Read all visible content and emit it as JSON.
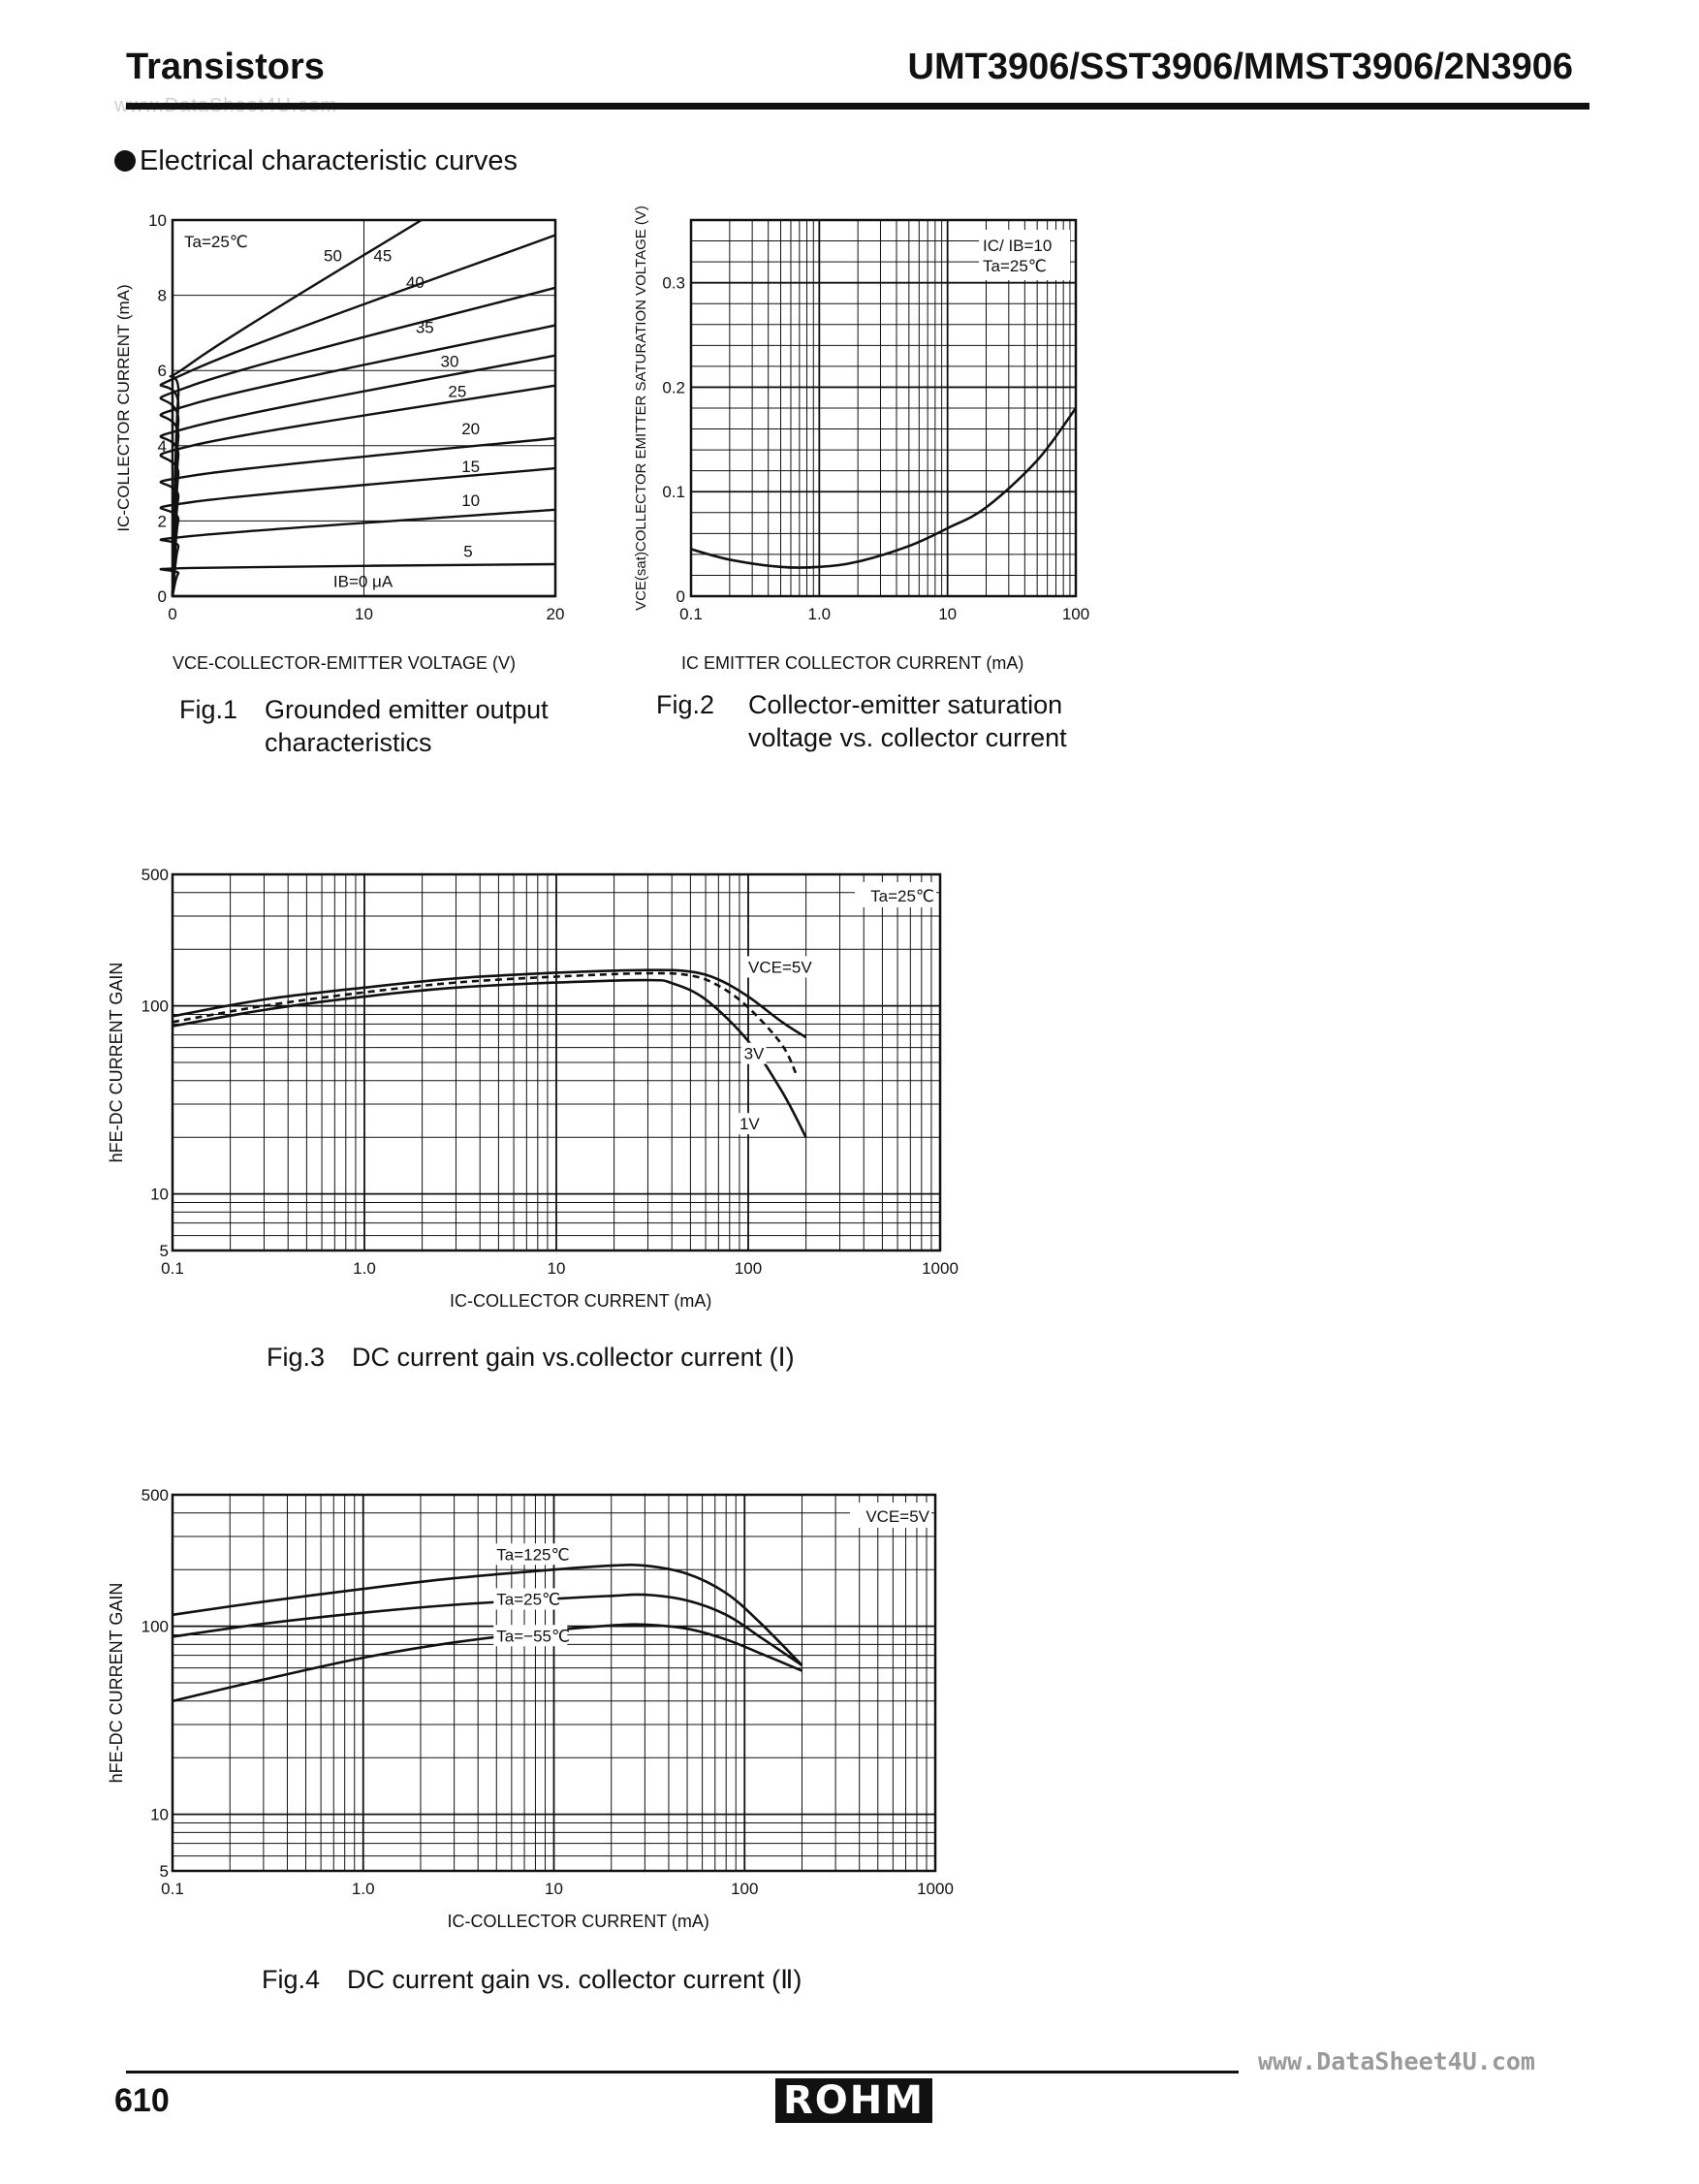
{
  "header": {
    "left_title": "Transistors",
    "right_title": "UMT3906/SST3906/MMST3906/2N3906",
    "watermark": "www.DataSheet4U.com"
  },
  "section_title": "Electrical characteristic curves",
  "footer": {
    "page_number": "610",
    "url": "www.DataSheet4U.com",
    "logo": "ROHM"
  },
  "chart_data": [
    {
      "id": "fig1",
      "type": "line",
      "caption_number": "Fig.1",
      "caption_line1": "Grounded emitter output",
      "caption_line2": "characteristics",
      "xlabel": "VCE-COLLECTOR-EMITTER VOLTAGE (V)",
      "ylabel": "IC-COLLECTOR CURRENT (mA)",
      "condition": "Ta=25℃",
      "xlim": [
        0,
        20
      ],
      "ylim": [
        0,
        10
      ],
      "x_ticks": [
        "0",
        "10",
        "20"
      ],
      "y_ticks": [
        "0",
        "2",
        "4",
        "6",
        "8",
        "10"
      ],
      "series": [
        {
          "name": "0",
          "label": "IB=0 μA",
          "points": [
            [
              0,
              0
            ],
            [
              20,
              0
            ]
          ]
        },
        {
          "name": "5",
          "label": "5",
          "points": [
            [
              0,
              0
            ],
            [
              0.3,
              0.6
            ],
            [
              1,
              0.75
            ],
            [
              20,
              0.85
            ]
          ]
        },
        {
          "name": "10",
          "label": "10",
          "points": [
            [
              0,
              0
            ],
            [
              0.3,
              1.3
            ],
            [
              1,
              1.6
            ],
            [
              20,
              2.3
            ]
          ]
        },
        {
          "name": "15",
          "label": "15",
          "points": [
            [
              0,
              0
            ],
            [
              0.3,
              2.0
            ],
            [
              1,
              2.5
            ],
            [
              20,
              3.4
            ]
          ]
        },
        {
          "name": "20",
          "label": "20",
          "points": [
            [
              0,
              0
            ],
            [
              0.3,
              2.6
            ],
            [
              1,
              3.2
            ],
            [
              20,
              4.2
            ]
          ]
        },
        {
          "name": "25",
          "label": "25",
          "points": [
            [
              0,
              0
            ],
            [
              0.3,
              3.2
            ],
            [
              1,
              4.0
            ],
            [
              20,
              5.6
            ]
          ]
        },
        {
          "name": "30",
          "label": "30",
          "points": [
            [
              0,
              0
            ],
            [
              0.3,
              3.7
            ],
            [
              1,
              4.5
            ],
            [
              20,
              6.4
            ]
          ]
        },
        {
          "name": "35",
          "label": "35",
          "points": [
            [
              0,
              0
            ],
            [
              0.3,
              4.2
            ],
            [
              1,
              5.1
            ],
            [
              20,
              7.2
            ]
          ]
        },
        {
          "name": "40",
          "label": "40",
          "points": [
            [
              0,
              0
            ],
            [
              0.3,
              4.6
            ],
            [
              1,
              5.6
            ],
            [
              20,
              8.2
            ]
          ]
        },
        {
          "name": "45",
          "label": "45",
          "points": [
            [
              0,
              0
            ],
            [
              0.3,
              5.0
            ],
            [
              1,
              6.0
            ],
            [
              20,
              9.6
            ]
          ]
        },
        {
          "name": "50",
          "label": "50",
          "points": [
            [
              0,
              0
            ],
            [
              0.3,
              5.3
            ],
            [
              1,
              6.2
            ],
            [
              13,
              10
            ]
          ]
        }
      ]
    },
    {
      "id": "fig2",
      "type": "line",
      "caption_number": "Fig.2",
      "caption_line1": "Collector-emitter saturation",
      "caption_line2": "voltage vs. collector current",
      "xlabel": "IC EMITTER COLLECTOR CURRENT (mA)",
      "ylabel": "VCE(sat)COLLECTOR EMITTER SATURATION VOLTAGE (V)",
      "condition1": "IC/ IB=10",
      "condition2": "Ta=25℃",
      "xscale": "log",
      "xlim": [
        0.1,
        100
      ],
      "ylim": [
        0,
        0.36
      ],
      "x_ticks": [
        "0.1",
        "1.0",
        "10",
        "100"
      ],
      "y_ticks": [
        "0",
        "0.1",
        "0.2",
        "0.3"
      ],
      "series": [
        {
          "name": "VCE(sat)",
          "points": [
            [
              0.1,
              0.045
            ],
            [
              0.2,
              0.035
            ],
            [
              0.5,
              0.028
            ],
            [
              1,
              0.028
            ],
            [
              2,
              0.033
            ],
            [
              5,
              0.048
            ],
            [
              10,
              0.065
            ],
            [
              20,
              0.085
            ],
            [
              50,
              0.13
            ],
            [
              100,
              0.18
            ]
          ]
        }
      ]
    },
    {
      "id": "fig3",
      "type": "line",
      "caption_number": "Fig.3",
      "caption_line1": "DC current gain vs.collector current (Ⅰ)",
      "xlabel": "IC-COLLECTOR CURRENT (mA)",
      "ylabel": "hFE-DC CURRENT GAIN",
      "condition": "Ta=25℃",
      "xscale": "log",
      "yscale": "log",
      "xlim": [
        0.1,
        1000
      ],
      "ylim": [
        5,
        500
      ],
      "x_ticks": [
        "0.1",
        "1.0",
        "10",
        "100",
        "1000"
      ],
      "y_ticks": [
        "5",
        "10",
        "100",
        "500"
      ],
      "series": [
        {
          "name": "VCE=5V",
          "label": "VCE=5V",
          "dashed": false,
          "points": [
            [
              0.1,
              88
            ],
            [
              0.3,
              108
            ],
            [
              1,
              125
            ],
            [
              3,
              140
            ],
            [
              10,
              150
            ],
            [
              30,
              155
            ],
            [
              50,
              152
            ],
            [
              70,
              138
            ],
            [
              100,
              112
            ],
            [
              150,
              82
            ],
            [
              200,
              68
            ]
          ]
        },
        {
          "name": "3V",
          "label": "3V",
          "dashed": true,
          "points": [
            [
              0.1,
              82
            ],
            [
              0.3,
              100
            ],
            [
              1,
              118
            ],
            [
              3,
              133
            ],
            [
              10,
              143
            ],
            [
              30,
              149
            ],
            [
              50,
              145
            ],
            [
              70,
              128
            ],
            [
              100,
              98
            ],
            [
              150,
              62
            ],
            [
              180,
              42
            ]
          ]
        },
        {
          "name": "1V",
          "label": "1V",
          "dashed": false,
          "points": [
            [
              0.1,
              78
            ],
            [
              0.3,
              95
            ],
            [
              1,
              112
            ],
            [
              3,
              125
            ],
            [
              10,
              133
            ],
            [
              30,
              137
            ],
            [
              40,
              132
            ],
            [
              60,
              108
            ],
            [
              100,
              65
            ],
            [
              150,
              35
            ],
            [
              200,
              20
            ]
          ]
        }
      ]
    },
    {
      "id": "fig4",
      "type": "line",
      "caption_number": "Fig.4",
      "caption_line1": "DC current gain vs. collector current (Ⅱ)",
      "xlabel": "IC-COLLECTOR CURRENT (mA)",
      "ylabel": "hFE-DC CURRENT GAIN",
      "condition": "VCE=5V",
      "xscale": "log",
      "yscale": "log",
      "xlim": [
        0.1,
        1000
      ],
      "ylim": [
        5,
        500
      ],
      "x_ticks": [
        "0.1",
        "1.0",
        "10",
        "100",
        "1000"
      ],
      "y_ticks": [
        "5",
        "10",
        "100",
        "500"
      ],
      "series": [
        {
          "name": "Ta=125℃",
          "label": "Ta=125℃",
          "points": [
            [
              0.1,
              115
            ],
            [
              0.3,
              135
            ],
            [
              1,
              158
            ],
            [
              3,
              180
            ],
            [
              10,
              200
            ],
            [
              20,
              210
            ],
            [
              30,
              210
            ],
            [
              50,
              190
            ],
            [
              80,
              150
            ],
            [
              120,
              105
            ],
            [
              200,
              62
            ]
          ]
        },
        {
          "name": "Ta=25℃",
          "label": "Ta=25℃",
          "points": [
            [
              0.1,
              88
            ],
            [
              0.3,
              103
            ],
            [
              1,
              118
            ],
            [
              3,
              130
            ],
            [
              10,
              140
            ],
            [
              20,
              145
            ],
            [
              30,
              147
            ],
            [
              50,
              137
            ],
            [
              80,
              115
            ],
            [
              120,
              88
            ],
            [
              200,
              62
            ]
          ]
        },
        {
          "name": "Ta=-55℃",
          "label": "Ta=−55℃",
          "points": [
            [
              0.1,
              40
            ],
            [
              0.3,
              52
            ],
            [
              1,
              68
            ],
            [
              3,
              82
            ],
            [
              10,
              95
            ],
            [
              20,
              101
            ],
            [
              30,
              102
            ],
            [
              50,
              97
            ],
            [
              80,
              85
            ],
            [
              120,
              72
            ],
            [
              200,
              58
            ]
          ]
        }
      ]
    }
  ]
}
